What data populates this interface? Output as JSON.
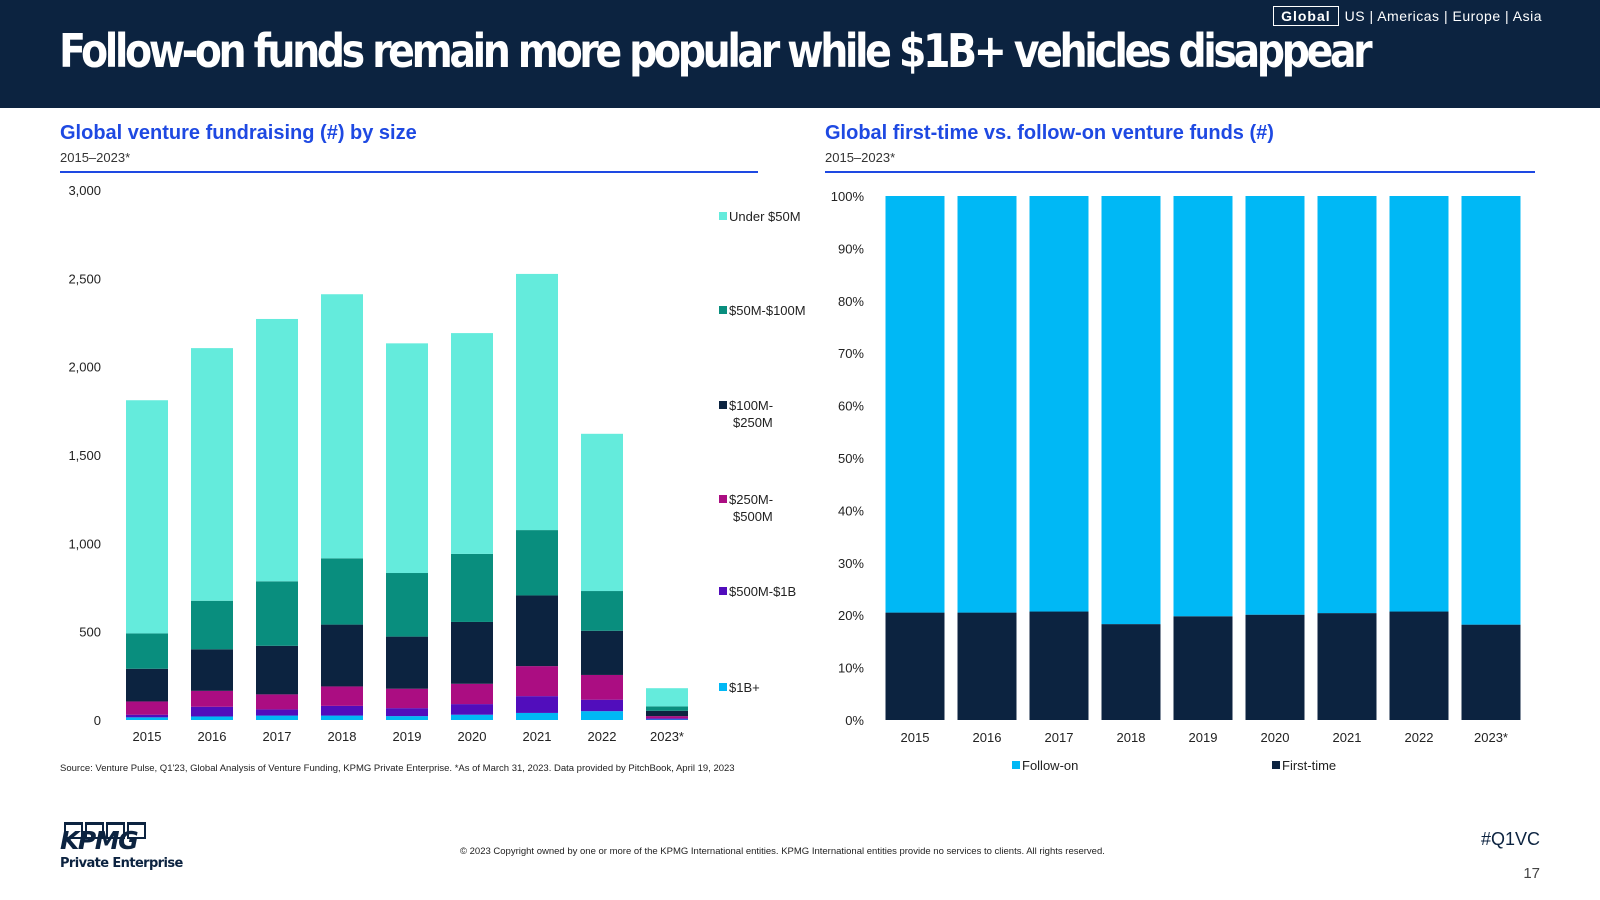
{
  "header": {
    "title": "Follow-on funds remain more popular while $1B+ vehicles disappear",
    "region_active": "Global",
    "region_others": "US | Americas | Europe | Asia"
  },
  "colors": {
    "header_bg": "#0c2340",
    "accent_blue": "#1e49e2",
    "under_50m": "#64ebdc",
    "m50_100": "#098e7e",
    "m100_250": "#0c2340",
    "m250_500": "#ab0d82",
    "m500_1b": "#510dbc",
    "b1_plus": "#00b8f5",
    "follow_on": "#00b8f5",
    "first_time": "#0c2340"
  },
  "left_panel": {
    "title": "Global venture fundraising (#) by size",
    "subtitle": "2015–2023*"
  },
  "right_panel": {
    "title": "Global first-time vs. follow-on venture funds (#)",
    "subtitle": "2015–2023*"
  },
  "chart_data": [
    {
      "type": "bar",
      "stacked": true,
      "categories": [
        "2015",
        "2016",
        "2017",
        "2018",
        "2019",
        "2020",
        "2021",
        "2022",
        "2023*"
      ],
      "ylim": [
        0,
        3000
      ],
      "yticks": [
        0,
        500,
        1000,
        1500,
        2000,
        2500,
        3000
      ],
      "ytick_labels": [
        "0",
        "500",
        "1,000",
        "1,500",
        "2,000",
        "2,500",
        "3,000"
      ],
      "legend_position": "right",
      "series": [
        {
          "name": "$1B+",
          "color": "#00b8f5",
          "values": [
            15,
            20,
            25,
            25,
            22,
            30,
            40,
            50,
            3
          ]
        },
        {
          "name": "$500M-$1B",
          "color": "#510dbc",
          "values": [
            15,
            55,
            35,
            55,
            45,
            60,
            95,
            65,
            7
          ]
        },
        {
          "name": "$250M-$500M",
          "color": "#ab0d82",
          "values": [
            75,
            90,
            85,
            110,
            110,
            115,
            170,
            140,
            12
          ]
        },
        {
          "name": "$100M-$250M",
          "color": "#0c2340",
          "values": [
            185,
            235,
            275,
            350,
            295,
            350,
            400,
            250,
            30
          ]
        },
        {
          "name": "$50M-$100M",
          "color": "#098e7e",
          "values": [
            200,
            275,
            365,
            375,
            360,
            385,
            370,
            225,
            25
          ]
        },
        {
          "name": "Under $50M",
          "color": "#64ebdc",
          "values": [
            1320,
            1430,
            1485,
            1495,
            1300,
            1250,
            1450,
            890,
            103
          ]
        }
      ],
      "legend_labels": [
        [
          "Under $50M"
        ],
        [
          "$50M-$100M"
        ],
        [
          "$100M-",
          "$250M"
        ],
        [
          "$250M-",
          "$500M"
        ],
        [
          "$500M-$1B"
        ],
        [
          "$1B+"
        ]
      ]
    },
    {
      "type": "bar",
      "stacked": true,
      "percent": true,
      "categories": [
        "2015",
        "2016",
        "2017",
        "2018",
        "2019",
        "2020",
        "2021",
        "2022",
        "2023*"
      ],
      "ylim": [
        0,
        100
      ],
      "yticks": [
        0,
        10,
        20,
        30,
        40,
        50,
        60,
        70,
        80,
        90,
        100
      ],
      "ytick_labels": [
        "0%",
        "10%",
        "20%",
        "30%",
        "40%",
        "50%",
        "60%",
        "70%",
        "80%",
        "90%",
        "100%"
      ],
      "legend_position": "bottom",
      "series": [
        {
          "name": "First-time",
          "color": "#0c2340",
          "values": [
            20.5,
            20.5,
            20.7,
            18.3,
            19.8,
            20.1,
            20.4,
            20.7,
            18.2
          ]
        },
        {
          "name": "Follow-on",
          "color": "#00b8f5",
          "values": [
            79.5,
            79.5,
            79.3,
            81.7,
            80.2,
            79.9,
            79.6,
            79.3,
            81.8
          ]
        }
      ],
      "legend_order": [
        "Follow-on",
        "First-time"
      ]
    }
  ],
  "footer": {
    "source": "Source: Venture Pulse, Q1'23, Global Analysis of Venture Funding, KPMG Private Enterprise. *As of March 31, 2023. Data provided by PitchBook, April 19, 2023",
    "copyright": "© 2023 Copyright owned by one or more of the KPMG International entities. KPMG International entities provide no services to clients. All rights reserved.",
    "hashtag": "#Q1VC",
    "page_number": "17",
    "logo_word": "KPMG",
    "logo_sub": "Private Enterprise"
  }
}
